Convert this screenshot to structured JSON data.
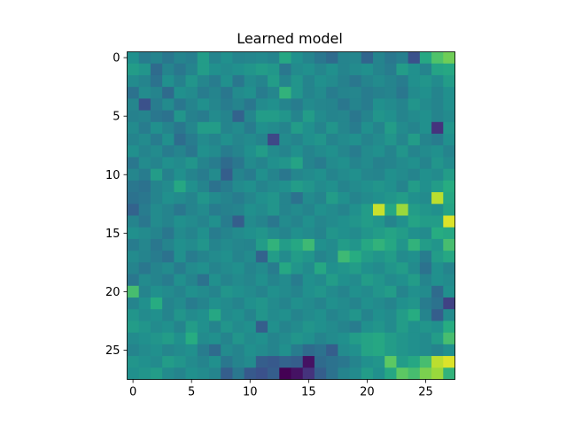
{
  "chart_data": {
    "type": "heatmap",
    "title": "Learned model",
    "xlabel": "",
    "ylabel": "",
    "colormap": "viridis",
    "rows": 28,
    "cols": 28,
    "xlim": [
      -0.5,
      27.5
    ],
    "ylim": [
      27.5,
      -0.5
    ],
    "x_ticks": [
      0,
      5,
      10,
      15,
      20,
      25
    ],
    "y_ticks": [
      0,
      5,
      10,
      15,
      20,
      25
    ],
    "value_range": [
      0,
      1
    ],
    "values": [
      [
        0.5,
        0.42,
        0.45,
        0.4,
        0.45,
        0.43,
        0.55,
        0.45,
        0.5,
        0.45,
        0.46,
        0.47,
        0.45,
        0.6,
        0.5,
        0.45,
        0.4,
        0.35,
        0.45,
        0.46,
        0.33,
        0.45,
        0.4,
        0.43,
        0.25,
        0.6,
        0.72,
        0.78
      ],
      [
        0.55,
        0.52,
        0.35,
        0.45,
        0.4,
        0.45,
        0.55,
        0.5,
        0.48,
        0.5,
        0.52,
        0.55,
        0.53,
        0.4,
        0.48,
        0.5,
        0.46,
        0.5,
        0.45,
        0.48,
        0.5,
        0.45,
        0.42,
        0.55,
        0.5,
        0.45,
        0.58,
        0.6
      ],
      [
        0.48,
        0.45,
        0.38,
        0.5,
        0.44,
        0.52,
        0.46,
        0.42,
        0.5,
        0.4,
        0.48,
        0.45,
        0.55,
        0.45,
        0.52,
        0.45,
        0.5,
        0.48,
        0.44,
        0.4,
        0.45,
        0.48,
        0.45,
        0.42,
        0.5,
        0.52,
        0.48,
        0.55
      ],
      [
        0.38,
        0.48,
        0.45,
        0.35,
        0.5,
        0.48,
        0.42,
        0.45,
        0.4,
        0.48,
        0.5,
        0.42,
        0.46,
        0.65,
        0.52,
        0.45,
        0.48,
        0.42,
        0.45,
        0.46,
        0.42,
        0.44,
        0.45,
        0.4,
        0.48,
        0.5,
        0.45,
        0.5
      ],
      [
        0.46,
        0.25,
        0.42,
        0.48,
        0.4,
        0.45,
        0.5,
        0.46,
        0.42,
        0.45,
        0.4,
        0.48,
        0.5,
        0.45,
        0.42,
        0.48,
        0.46,
        0.45,
        0.4,
        0.45,
        0.42,
        0.5,
        0.48,
        0.45,
        0.52,
        0.48,
        0.45,
        0.5
      ],
      [
        0.44,
        0.45,
        0.4,
        0.38,
        0.52,
        0.44,
        0.42,
        0.48,
        0.45,
        0.32,
        0.46,
        0.55,
        0.55,
        0.52,
        0.45,
        0.55,
        0.48,
        0.45,
        0.46,
        0.4,
        0.45,
        0.52,
        0.5,
        0.45,
        0.48,
        0.5,
        0.45,
        0.48
      ],
      [
        0.48,
        0.42,
        0.5,
        0.45,
        0.4,
        0.46,
        0.55,
        0.55,
        0.45,
        0.48,
        0.42,
        0.5,
        0.48,
        0.45,
        0.55,
        0.5,
        0.45,
        0.52,
        0.46,
        0.42,
        0.5,
        0.45,
        0.55,
        0.48,
        0.45,
        0.5,
        0.15,
        0.52
      ],
      [
        0.45,
        0.48,
        0.42,
        0.5,
        0.36,
        0.42,
        0.48,
        0.45,
        0.5,
        0.46,
        0.48,
        0.45,
        0.22,
        0.48,
        0.45,
        0.5,
        0.52,
        0.45,
        0.48,
        0.5,
        0.45,
        0.48,
        0.52,
        0.46,
        0.55,
        0.45,
        0.42,
        0.5
      ],
      [
        0.5,
        0.45,
        0.48,
        0.42,
        0.45,
        0.4,
        0.5,
        0.48,
        0.42,
        0.45,
        0.5,
        0.55,
        0.48,
        0.45,
        0.5,
        0.45,
        0.48,
        0.5,
        0.46,
        0.42,
        0.48,
        0.5,
        0.45,
        0.52,
        0.45,
        0.48,
        0.5,
        0.45
      ],
      [
        0.4,
        0.48,
        0.45,
        0.5,
        0.48,
        0.52,
        0.45,
        0.42,
        0.35,
        0.4,
        0.48,
        0.45,
        0.5,
        0.52,
        0.58,
        0.45,
        0.42,
        0.48,
        0.5,
        0.45,
        0.48,
        0.44,
        0.45,
        0.48,
        0.5,
        0.45,
        0.52,
        0.48
      ],
      [
        0.46,
        0.42,
        0.55,
        0.44,
        0.5,
        0.45,
        0.42,
        0.48,
        0.3,
        0.45,
        0.42,
        0.5,
        0.45,
        0.4,
        0.46,
        0.48,
        0.5,
        0.45,
        0.48,
        0.5,
        0.46,
        0.45,
        0.5,
        0.48,
        0.45,
        0.5,
        0.48,
        0.55
      ],
      [
        0.4,
        0.38,
        0.45,
        0.48,
        0.6,
        0.5,
        0.45,
        0.38,
        0.42,
        0.48,
        0.5,
        0.45,
        0.48,
        0.5,
        0.55,
        0.52,
        0.48,
        0.5,
        0.45,
        0.48,
        0.5,
        0.52,
        0.5,
        0.45,
        0.55,
        0.5,
        0.55,
        0.62
      ],
      [
        0.38,
        0.4,
        0.45,
        0.5,
        0.48,
        0.45,
        0.52,
        0.48,
        0.45,
        0.42,
        0.46,
        0.5,
        0.52,
        0.45,
        0.38,
        0.48,
        0.45,
        0.55,
        0.5,
        0.45,
        0.48,
        0.5,
        0.52,
        0.55,
        0.5,
        0.48,
        0.9,
        0.6
      ],
      [
        0.32,
        0.42,
        0.48,
        0.45,
        0.4,
        0.45,
        0.48,
        0.42,
        0.44,
        0.45,
        0.5,
        0.48,
        0.52,
        0.45,
        0.48,
        0.45,
        0.5,
        0.48,
        0.45,
        0.5,
        0.55,
        0.92,
        0.6,
        0.85,
        0.55,
        0.52,
        0.5,
        0.58
      ],
      [
        0.45,
        0.4,
        0.48,
        0.45,
        0.5,
        0.48,
        0.45,
        0.5,
        0.42,
        0.3,
        0.48,
        0.45,
        0.4,
        0.48,
        0.45,
        0.5,
        0.46,
        0.48,
        0.5,
        0.52,
        0.55,
        0.52,
        0.45,
        0.5,
        0.58,
        0.55,
        0.55,
        0.95
      ],
      [
        0.5,
        0.48,
        0.45,
        0.4,
        0.48,
        0.45,
        0.5,
        0.42,
        0.45,
        0.48,
        0.5,
        0.52,
        0.48,
        0.45,
        0.5,
        0.48,
        0.45,
        0.52,
        0.5,
        0.48,
        0.52,
        0.55,
        0.58,
        0.55,
        0.5,
        0.48,
        0.62,
        0.6
      ],
      [
        0.42,
        0.46,
        0.4,
        0.45,
        0.5,
        0.48,
        0.52,
        0.45,
        0.48,
        0.46,
        0.45,
        0.55,
        0.65,
        0.55,
        0.6,
        0.68,
        0.5,
        0.48,
        0.55,
        0.52,
        0.6,
        0.65,
        0.6,
        0.52,
        0.65,
        0.55,
        0.52,
        0.7
      ],
      [
        0.48,
        0.45,
        0.42,
        0.38,
        0.5,
        0.42,
        0.45,
        0.48,
        0.5,
        0.45,
        0.48,
        0.32,
        0.55,
        0.48,
        0.55,
        0.52,
        0.45,
        0.48,
        0.68,
        0.62,
        0.55,
        0.52,
        0.55,
        0.48,
        0.5,
        0.42,
        0.55,
        0.6
      ],
      [
        0.45,
        0.4,
        0.45,
        0.48,
        0.42,
        0.48,
        0.5,
        0.45,
        0.48,
        0.5,
        0.45,
        0.48,
        0.42,
        0.6,
        0.52,
        0.48,
        0.6,
        0.5,
        0.52,
        0.55,
        0.5,
        0.48,
        0.52,
        0.55,
        0.48,
        0.38,
        0.5,
        0.45
      ],
      [
        0.4,
        0.48,
        0.45,
        0.42,
        0.5,
        0.45,
        0.38,
        0.5,
        0.45,
        0.48,
        0.46,
        0.5,
        0.45,
        0.48,
        0.42,
        0.5,
        0.48,
        0.55,
        0.5,
        0.48,
        0.55,
        0.52,
        0.48,
        0.5,
        0.55,
        0.45,
        0.5,
        0.48
      ],
      [
        0.7,
        0.45,
        0.5,
        0.48,
        0.45,
        0.5,
        0.48,
        0.45,
        0.52,
        0.5,
        0.48,
        0.45,
        0.5,
        0.48,
        0.45,
        0.5,
        0.52,
        0.48,
        0.45,
        0.5,
        0.48,
        0.52,
        0.55,
        0.45,
        0.5,
        0.48,
        0.35,
        0.5
      ],
      [
        0.45,
        0.5,
        0.62,
        0.45,
        0.48,
        0.42,
        0.45,
        0.5,
        0.48,
        0.45,
        0.5,
        0.52,
        0.48,
        0.45,
        0.5,
        0.48,
        0.45,
        0.5,
        0.48,
        0.45,
        0.5,
        0.48,
        0.45,
        0.5,
        0.52,
        0.42,
        0.38,
        0.2
      ],
      [
        0.52,
        0.48,
        0.5,
        0.45,
        0.52,
        0.48,
        0.5,
        0.6,
        0.48,
        0.5,
        0.45,
        0.52,
        0.48,
        0.5,
        0.45,
        0.48,
        0.5,
        0.45,
        0.48,
        0.52,
        0.45,
        0.5,
        0.48,
        0.55,
        0.62,
        0.45,
        0.3,
        0.48
      ],
      [
        0.55,
        0.52,
        0.48,
        0.5,
        0.45,
        0.55,
        0.5,
        0.45,
        0.52,
        0.48,
        0.5,
        0.3,
        0.5,
        0.45,
        0.48,
        0.52,
        0.5,
        0.48,
        0.45,
        0.42,
        0.5,
        0.52,
        0.48,
        0.55,
        0.5,
        0.52,
        0.5,
        0.62
      ],
      [
        0.48,
        0.5,
        0.52,
        0.55,
        0.5,
        0.62,
        0.48,
        0.5,
        0.45,
        0.52,
        0.48,
        0.5,
        0.45,
        0.48,
        0.52,
        0.5,
        0.45,
        0.48,
        0.5,
        0.55,
        0.58,
        0.6,
        0.55,
        0.52,
        0.5,
        0.48,
        0.55,
        0.7
      ],
      [
        0.45,
        0.48,
        0.5,
        0.46,
        0.48,
        0.5,
        0.42,
        0.35,
        0.48,
        0.45,
        0.5,
        0.48,
        0.45,
        0.5,
        0.42,
        0.35,
        0.38,
        0.3,
        0.48,
        0.5,
        0.58,
        0.6,
        0.55,
        0.52,
        0.5,
        0.48,
        0.45,
        0.5
      ],
      [
        0.52,
        0.5,
        0.48,
        0.55,
        0.52,
        0.48,
        0.45,
        0.5,
        0.4,
        0.45,
        0.48,
        0.3,
        0.28,
        0.32,
        0.3,
        0.05,
        0.35,
        0.38,
        0.4,
        0.45,
        0.5,
        0.52,
        0.75,
        0.55,
        0.6,
        0.7,
        0.9,
        0.95
      ],
      [
        0.5,
        0.52,
        0.55,
        0.48,
        0.45,
        0.5,
        0.48,
        0.45,
        0.3,
        0.4,
        0.28,
        0.25,
        0.3,
        0.0,
        0.05,
        0.15,
        0.3,
        0.38,
        0.45,
        0.48,
        0.55,
        0.5,
        0.6,
        0.75,
        0.7,
        0.8,
        0.85,
        0.65
      ]
    ]
  }
}
